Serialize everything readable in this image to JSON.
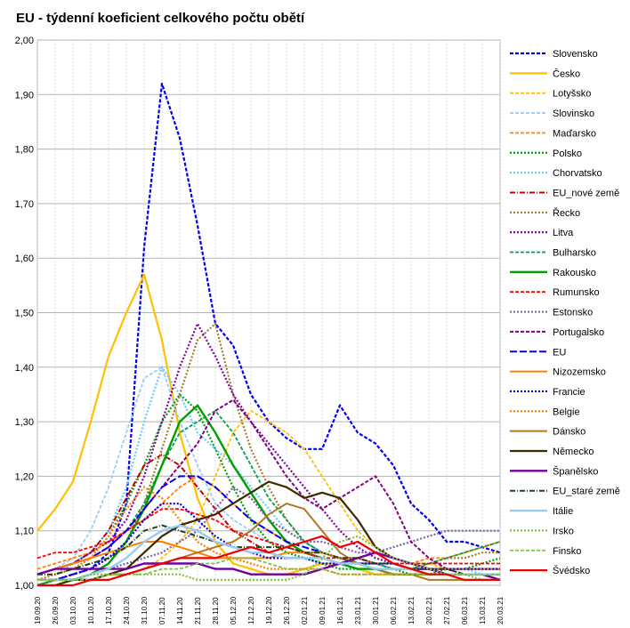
{
  "chart_data": {
    "type": "line",
    "title": "EU - týdenní koeficient celkového počtu obětí",
    "xlabel": "",
    "ylabel": "",
    "ylim": [
      1.0,
      2.0
    ],
    "y_ticks": [
      "1,00",
      "1,10",
      "1,20",
      "1,30",
      "1,40",
      "1,50",
      "1,60",
      "1,70",
      "1,80",
      "1,90",
      "2,00"
    ],
    "x_ticks": [
      "19.09.20",
      "26.09.20",
      "03.10.20",
      "10.10.20",
      "17.10.20",
      "24.10.20",
      "31.10.20",
      "07.11.20",
      "14.11.20",
      "21.11.20",
      "28.11.20",
      "05.12.20",
      "12.12.20",
      "19.12.20",
      "26.12.20",
      "02.01.21",
      "09.01.21",
      "16.01.21",
      "23.01.21",
      "30.01.21",
      "06.02.21",
      "13.02.21",
      "20.02.21",
      "27.02.21",
      "06.03.21",
      "13.03.21",
      "20.03.21"
    ],
    "grid": true,
    "legend_position": "right",
    "series": [
      {
        "name": "Slovensko",
        "color": "#0000ee",
        "dash": "4,2",
        "width": 2.2,
        "values": [
          1.01,
          1.01,
          1.02,
          1.03,
          1.06,
          1.15,
          1.62,
          1.92,
          1.82,
          1.66,
          1.48,
          1.44,
          1.35,
          1.3,
          1.27,
          1.25,
          1.25,
          1.33,
          1.28,
          1.26,
          1.22,
          1.15,
          1.12,
          1.08,
          1.08,
          1.07,
          1.06
        ]
      },
      {
        "name": "Česko",
        "color": "#ffc000",
        "dash": "",
        "width": 2.2,
        "values": [
          1.1,
          1.14,
          1.19,
          1.3,
          1.42,
          1.5,
          1.57,
          1.45,
          1.28,
          1.16,
          1.08,
          1.04,
          1.03,
          1.02,
          1.02,
          1.03,
          1.04,
          1.04,
          1.03,
          1.02,
          1.02,
          1.02,
          1.02,
          1.02,
          1.02,
          1.02,
          1.02
        ]
      },
      {
        "name": "Lotyšsko",
        "color": "#ffc000",
        "dash": "4,2",
        "width": 1.8,
        "values": [
          1.0,
          1.0,
          1.01,
          1.01,
          1.02,
          1.02,
          1.03,
          1.05,
          1.08,
          1.12,
          1.2,
          1.28,
          1.32,
          1.3,
          1.28,
          1.25,
          1.2,
          1.15,
          1.1,
          1.07,
          1.05,
          1.04,
          1.04,
          1.03,
          1.03,
          1.03,
          1.03
        ]
      },
      {
        "name": "Slovinsko",
        "color": "#99ccff",
        "dash": "4,2",
        "width": 1.8,
        "values": [
          1.02,
          1.03,
          1.05,
          1.1,
          1.18,
          1.28,
          1.38,
          1.4,
          1.3,
          1.22,
          1.15,
          1.12,
          1.1,
          1.08,
          1.07,
          1.06,
          1.06,
          1.05,
          1.04,
          1.04,
          1.03,
          1.03,
          1.03,
          1.02,
          1.02,
          1.02,
          1.02
        ]
      },
      {
        "name": "Maďarsko",
        "color": "#ff8000",
        "dash": "4,2",
        "width": 1.8,
        "values": [
          1.03,
          1.04,
          1.05,
          1.06,
          1.08,
          1.1,
          1.12,
          1.15,
          1.18,
          1.2,
          1.18,
          1.15,
          1.12,
          1.1,
          1.08,
          1.06,
          1.05,
          1.04,
          1.04,
          1.04,
          1.04,
          1.04,
          1.05,
          1.05,
          1.06,
          1.07,
          1.08
        ]
      },
      {
        "name": "Polsko",
        "color": "#00a000",
        "dash": "2,2",
        "width": 2.2,
        "values": [
          1.01,
          1.02,
          1.03,
          1.05,
          1.09,
          1.15,
          1.22,
          1.3,
          1.35,
          1.32,
          1.25,
          1.18,
          1.12,
          1.08,
          1.06,
          1.05,
          1.04,
          1.03,
          1.03,
          1.03,
          1.03,
          1.02,
          1.02,
          1.03,
          1.03,
          1.04,
          1.05
        ]
      },
      {
        "name": "Chorvatsko",
        "color": "#66ccff",
        "dash": "2,2",
        "width": 2.2,
        "values": [
          1.01,
          1.02,
          1.04,
          1.06,
          1.1,
          1.18,
          1.3,
          1.4,
          1.35,
          1.28,
          1.25,
          1.22,
          1.18,
          1.14,
          1.1,
          1.08,
          1.06,
          1.05,
          1.04,
          1.04,
          1.03,
          1.03,
          1.03,
          1.03,
          1.03,
          1.02,
          1.02
        ]
      },
      {
        "name": "EU_nové země",
        "color": "#c00000",
        "dash": "6,2,1,2",
        "width": 2,
        "values": [
          1.02,
          1.03,
          1.04,
          1.06,
          1.1,
          1.16,
          1.22,
          1.24,
          1.22,
          1.18,
          1.14,
          1.1,
          1.08,
          1.06,
          1.05,
          1.05,
          1.05,
          1.04,
          1.04,
          1.03,
          1.03,
          1.03,
          1.03,
          1.03,
          1.03,
          1.03,
          1.03
        ]
      },
      {
        "name": "Řecko",
        "color": "#a67a2a",
        "dash": "2,2",
        "width": 2.2,
        "values": [
          1.01,
          1.01,
          1.02,
          1.03,
          1.05,
          1.08,
          1.15,
          1.25,
          1.35,
          1.45,
          1.48,
          1.35,
          1.25,
          1.18,
          1.12,
          1.08,
          1.06,
          1.05,
          1.04,
          1.04,
          1.03,
          1.03,
          1.04,
          1.05,
          1.05,
          1.06,
          1.06
        ]
      },
      {
        "name": "Litva",
        "color": "#8000a0",
        "dash": "2,2",
        "width": 2.2,
        "values": [
          1.02,
          1.03,
          1.04,
          1.06,
          1.08,
          1.12,
          1.2,
          1.3,
          1.4,
          1.48,
          1.42,
          1.35,
          1.3,
          1.26,
          1.22,
          1.18,
          1.14,
          1.1,
          1.07,
          1.05,
          1.04,
          1.03,
          1.03,
          1.02,
          1.02,
          1.02,
          1.02
        ]
      },
      {
        "name": "Bulharsko",
        "color": "#00a050",
        "dash": "4,2",
        "width": 1.8,
        "values": [
          1.02,
          1.03,
          1.04,
          1.05,
          1.07,
          1.1,
          1.15,
          1.22,
          1.28,
          1.3,
          1.32,
          1.28,
          1.22,
          1.16,
          1.12,
          1.08,
          1.06,
          1.05,
          1.04,
          1.04,
          1.03,
          1.03,
          1.04,
          1.05,
          1.06,
          1.07,
          1.08
        ]
      },
      {
        "name": "Rakousko",
        "color": "#00a000",
        "dash": "",
        "width": 2.4,
        "values": [
          1.0,
          1.01,
          1.01,
          1.02,
          1.04,
          1.08,
          1.14,
          1.22,
          1.3,
          1.33,
          1.28,
          1.22,
          1.17,
          1.12,
          1.08,
          1.06,
          1.05,
          1.04,
          1.03,
          1.03,
          1.02,
          1.02,
          1.02,
          1.02,
          1.02,
          1.02,
          1.02
        ]
      },
      {
        "name": "Rumunsko",
        "color": "#ff0000",
        "dash": "4,2",
        "width": 1.8,
        "values": [
          1.05,
          1.06,
          1.06,
          1.07,
          1.08,
          1.1,
          1.12,
          1.14,
          1.14,
          1.13,
          1.12,
          1.1,
          1.09,
          1.08,
          1.07,
          1.06,
          1.05,
          1.05,
          1.04,
          1.04,
          1.04,
          1.04,
          1.04,
          1.04,
          1.04,
          1.04,
          1.04
        ]
      },
      {
        "name": "Estonsko",
        "color": "#8060a0",
        "dash": "2,2",
        "width": 2.2,
        "values": [
          1.0,
          1.01,
          1.01,
          1.02,
          1.03,
          1.04,
          1.05,
          1.06,
          1.08,
          1.1,
          1.14,
          1.18,
          1.16,
          1.12,
          1.1,
          1.08,
          1.08,
          1.07,
          1.06,
          1.06,
          1.07,
          1.08,
          1.09,
          1.1,
          1.1,
          1.1,
          1.1
        ]
      },
      {
        "name": "Portugalsko",
        "color": "#800080",
        "dash": "4,2",
        "width": 2,
        "values": [
          1.02,
          1.03,
          1.04,
          1.05,
          1.07,
          1.1,
          1.14,
          1.18,
          1.22,
          1.26,
          1.32,
          1.34,
          1.3,
          1.25,
          1.2,
          1.16,
          1.14,
          1.16,
          1.18,
          1.2,
          1.15,
          1.08,
          1.05,
          1.03,
          1.02,
          1.02,
          1.02
        ]
      },
      {
        "name": "EU",
        "color": "#0000ee",
        "dash": "8,3",
        "width": 2,
        "values": [
          1.02,
          1.03,
          1.04,
          1.05,
          1.07,
          1.1,
          1.14,
          1.18,
          1.2,
          1.2,
          1.18,
          1.15,
          1.12,
          1.1,
          1.08,
          1.07,
          1.06,
          1.05,
          1.05,
          1.04,
          1.04,
          1.03,
          1.03,
          1.03,
          1.03,
          1.03,
          1.03
        ]
      },
      {
        "name": "Nizozemsko",
        "color": "#ff8000",
        "dash": "",
        "width": 2,
        "values": [
          1.02,
          1.03,
          1.04,
          1.05,
          1.06,
          1.07,
          1.08,
          1.08,
          1.07,
          1.06,
          1.05,
          1.05,
          1.05,
          1.05,
          1.06,
          1.06,
          1.06,
          1.05,
          1.05,
          1.04,
          1.04,
          1.03,
          1.03,
          1.03,
          1.03,
          1.03,
          1.03
        ]
      },
      {
        "name": "Francie",
        "color": "#0000ee",
        "dash": "2,2",
        "width": 2.2,
        "values": [
          1.01,
          1.01,
          1.02,
          1.03,
          1.05,
          1.08,
          1.12,
          1.15,
          1.15,
          1.12,
          1.09,
          1.07,
          1.06,
          1.05,
          1.05,
          1.05,
          1.04,
          1.04,
          1.04,
          1.04,
          1.04,
          1.03,
          1.03,
          1.03,
          1.03,
          1.03,
          1.03
        ]
      },
      {
        "name": "Belgie",
        "color": "#ff8000",
        "dash": "2,2",
        "width": 2.2,
        "values": [
          1.01,
          1.02,
          1.03,
          1.05,
          1.09,
          1.14,
          1.18,
          1.16,
          1.12,
          1.08,
          1.06,
          1.05,
          1.04,
          1.03,
          1.03,
          1.03,
          1.03,
          1.02,
          1.02,
          1.02,
          1.02,
          1.02,
          1.02,
          1.02,
          1.02,
          1.02,
          1.02
        ]
      },
      {
        "name": "Dánsko",
        "color": "#b07820",
        "dash": "",
        "width": 2,
        "values": [
          1.0,
          1.0,
          1.01,
          1.01,
          1.02,
          1.02,
          1.03,
          1.04,
          1.05,
          1.06,
          1.07,
          1.08,
          1.1,
          1.13,
          1.15,
          1.14,
          1.1,
          1.06,
          1.04,
          1.03,
          1.02,
          1.02,
          1.01,
          1.01,
          1.01,
          1.01,
          1.01
        ]
      },
      {
        "name": "Německo",
        "color": "#3a2a00",
        "dash": "",
        "width": 2.2,
        "values": [
          1.0,
          1.0,
          1.01,
          1.01,
          1.02,
          1.03,
          1.06,
          1.09,
          1.11,
          1.12,
          1.13,
          1.15,
          1.17,
          1.19,
          1.18,
          1.16,
          1.17,
          1.16,
          1.12,
          1.07,
          1.05,
          1.04,
          1.03,
          1.02,
          1.02,
          1.02,
          1.02
        ]
      },
      {
        "name": "Španělsko",
        "color": "#7000a0",
        "dash": "",
        "width": 2.4,
        "values": [
          1.02,
          1.03,
          1.03,
          1.03,
          1.03,
          1.03,
          1.04,
          1.04,
          1.04,
          1.04,
          1.03,
          1.03,
          1.02,
          1.02,
          1.02,
          1.02,
          1.03,
          1.04,
          1.05,
          1.06,
          1.05,
          1.04,
          1.03,
          1.02,
          1.02,
          1.02,
          1.01
        ]
      },
      {
        "name": "EU_staré země",
        "color": "#204020",
        "dash": "6,2,1,2",
        "width": 2,
        "values": [
          1.02,
          1.02,
          1.03,
          1.04,
          1.05,
          1.07,
          1.1,
          1.11,
          1.1,
          1.09,
          1.08,
          1.07,
          1.07,
          1.07,
          1.07,
          1.06,
          1.06,
          1.05,
          1.05,
          1.04,
          1.04,
          1.03,
          1.03,
          1.03,
          1.02,
          1.02,
          1.02
        ]
      },
      {
        "name": "Itálie",
        "color": "#99ccee",
        "dash": "",
        "width": 2.4,
        "values": [
          1.01,
          1.01,
          1.01,
          1.02,
          1.03,
          1.05,
          1.08,
          1.1,
          1.11,
          1.1,
          1.08,
          1.07,
          1.06,
          1.06,
          1.05,
          1.05,
          1.05,
          1.04,
          1.04,
          1.03,
          1.03,
          1.03,
          1.02,
          1.02,
          1.02,
          1.02,
          1.02
        ]
      },
      {
        "name": "Irsko",
        "color": "#80c040",
        "dash": "2,2",
        "width": 2.2,
        "values": [
          1.01,
          1.01,
          1.01,
          1.02,
          1.02,
          1.02,
          1.02,
          1.02,
          1.02,
          1.01,
          1.01,
          1.01,
          1.01,
          1.01,
          1.01,
          1.02,
          1.05,
          1.08,
          1.09,
          1.07,
          1.05,
          1.04,
          1.03,
          1.02,
          1.02,
          1.01,
          1.01
        ]
      },
      {
        "name": "Finsko",
        "color": "#80c040",
        "dash": "4,2",
        "width": 1.8,
        "values": [
          1.01,
          1.01,
          1.01,
          1.01,
          1.02,
          1.02,
          1.02,
          1.03,
          1.03,
          1.04,
          1.04,
          1.05,
          1.05,
          1.04,
          1.03,
          1.03,
          1.03,
          1.02,
          1.02,
          1.02,
          1.02,
          1.02,
          1.02,
          1.02,
          1.02,
          1.02,
          1.02
        ]
      },
      {
        "name": "Švédsko",
        "color": "#ee0000",
        "dash": "",
        "width": 2.2,
        "values": [
          1.0,
          1.0,
          1.0,
          1.01,
          1.01,
          1.02,
          1.03,
          1.04,
          1.05,
          1.05,
          1.05,
          1.06,
          1.07,
          1.06,
          1.07,
          1.08,
          1.09,
          1.07,
          1.08,
          1.06,
          1.04,
          1.03,
          1.02,
          1.02,
          1.01,
          1.01,
          1.01
        ]
      }
    ]
  }
}
